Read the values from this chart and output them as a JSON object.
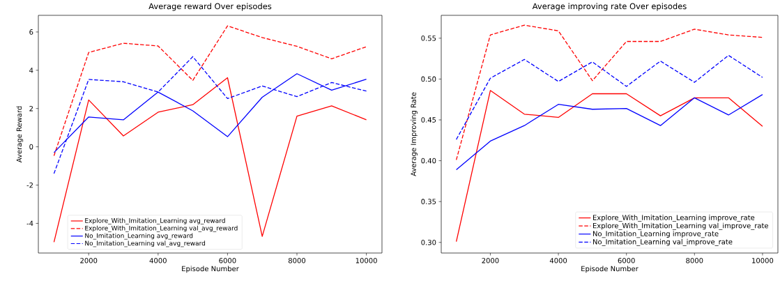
{
  "chart_data": [
    {
      "type": "line",
      "title": "Average reward Over episodes",
      "xlabel": "Episode Number",
      "ylabel": "Average Reward",
      "x": [
        1000,
        2000,
        3000,
        4000,
        5000,
        6000,
        7000,
        8000,
        9000,
        10000
      ],
      "xlim": [
        550,
        10450
      ],
      "ylim": [
        -5.55,
        6.87
      ],
      "xticks": [
        2000,
        4000,
        6000,
        8000,
        10000
      ],
      "yticks": [
        -4,
        -2,
        0,
        2,
        4,
        6
      ],
      "legend": "bottom",
      "marker": "none",
      "series": [
        {
          "name": "Explore_With_Imitation_Learning avg_reward",
          "color": "#ff0000",
          "line_style": "solid",
          "values": [
            -4.98,
            2.45,
            0.57,
            1.81,
            2.2,
            3.61,
            -4.68,
            1.6,
            2.14,
            1.41
          ]
        },
        {
          "name": "Explore_With_Imitation_Learning val_avg_reward",
          "color": "#ff0000",
          "line_style": "dashed",
          "values": [
            -0.47,
            4.93,
            5.41,
            5.27,
            3.47,
            6.32,
            5.71,
            5.25,
            4.6,
            5.23
          ]
        },
        {
          "name": "No_Imitation_Learning avg_reward",
          "color": "#0000ff",
          "line_style": "solid",
          "values": [
            -0.3,
            1.56,
            1.41,
            2.86,
            1.88,
            0.53,
            2.59,
            3.82,
            2.96,
            3.53
          ]
        },
        {
          "name": "No_Imitation_Learning val_avg_reward",
          "color": "#0000ff",
          "line_style": "dashed",
          "values": [
            -1.4,
            3.52,
            3.4,
            2.86,
            4.71,
            2.52,
            3.18,
            2.62,
            3.36,
            2.91
          ]
        }
      ]
    },
    {
      "type": "line",
      "title": "Average improving rate Over episodes",
      "xlabel": "Episode Number",
      "ylabel": "Average Improving Rate",
      "x": [
        1000,
        2000,
        3000,
        4000,
        5000,
        6000,
        7000,
        8000,
        9000,
        10000
      ],
      "xlim": [
        557,
        10452
      ],
      "ylim": [
        0.287,
        0.578
      ],
      "xticks": [
        2000,
        4000,
        6000,
        8000,
        10000
      ],
      "yticks": [
        {
          "value": 0.3,
          "label": "0.30"
        },
        {
          "value": 0.35,
          "label": "0.35"
        },
        {
          "value": 0.4,
          "label": "0.40"
        },
        {
          "value": 0.45,
          "label": "0.45"
        },
        {
          "value": 0.5,
          "label": "0.50"
        },
        {
          "value": 0.55,
          "label": "0.55"
        }
      ],
      "legend": "bottom right",
      "marker": "none",
      "series": [
        {
          "name": "Explore_With_Imitation_Learning improve_rate",
          "color": "#ff0000",
          "line_style": "solid",
          "values": [
            0.301,
            0.486,
            0.457,
            0.453,
            0.482,
            0.482,
            0.455,
            0.477,
            0.477,
            0.442
          ]
        },
        {
          "name": "Explore_With_Imitation_Learning val_improve_rate",
          "color": "#ff0000",
          "line_style": "dashed",
          "values": [
            0.401,
            0.554,
            0.566,
            0.559,
            0.498,
            0.546,
            0.546,
            0.561,
            0.554,
            0.551
          ]
        },
        {
          "name": "No_Imitation_Learning improve_rate",
          "color": "#0000ff",
          "line_style": "solid",
          "values": [
            0.389,
            0.424,
            0.443,
            0.469,
            0.463,
            0.464,
            0.443,
            0.477,
            0.456,
            0.481
          ]
        },
        {
          "name": "No_Imitation_Learning val_improve_rate",
          "color": "#0000ff",
          "line_style": "dashed",
          "values": [
            0.426,
            0.501,
            0.524,
            0.497,
            0.521,
            0.491,
            0.522,
            0.496,
            0.529,
            0.502
          ]
        }
      ]
    }
  ]
}
